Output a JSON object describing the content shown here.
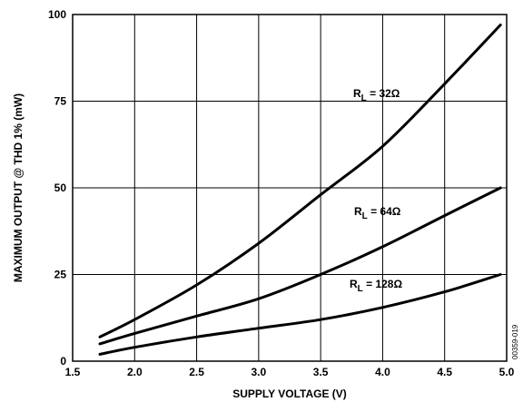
{
  "chart_data": {
    "type": "line",
    "title": "",
    "xlabel": "SUPPLY VOLTAGE (V)",
    "ylabel": "MAXIMUM OUTPUT @ THD 1% (mW)",
    "xlim": [
      1.5,
      5.0
    ],
    "ylim": [
      0,
      100
    ],
    "xticks": [
      "1.5",
      "2.0",
      "2.5",
      "3.0",
      "3.5",
      "4.0",
      "4.5",
      "5.0"
    ],
    "yticks": [
      "0",
      "25",
      "50",
      "75",
      "100"
    ],
    "grid": true,
    "series": [
      {
        "name": "R_L = 32Ω",
        "label_main": "R",
        "label_sub": "L",
        "label_rest": " = 32Ω",
        "x": [
          1.72,
          2.0,
          2.5,
          3.0,
          3.5,
          4.0,
          4.5,
          4.95
        ],
        "values": [
          7,
          12,
          22,
          34,
          48,
          62,
          80,
          97
        ]
      },
      {
        "name": "R_L = 64Ω",
        "label_main": "R",
        "label_sub": "L",
        "label_rest": " = 64Ω",
        "x": [
          1.72,
          2.0,
          2.5,
          3.0,
          3.5,
          4.0,
          4.5,
          4.95
        ],
        "values": [
          5,
          8,
          13,
          18,
          25,
          33,
          42,
          50
        ]
      },
      {
        "name": "R_L = 128Ω",
        "label_main": "R",
        "label_sub": "L",
        "label_rest": " = 128Ω",
        "x": [
          1.72,
          2.0,
          2.5,
          3.0,
          3.5,
          4.0,
          4.5,
          4.95
        ],
        "values": [
          2,
          4,
          7,
          9.5,
          12,
          15.5,
          20,
          25
        ]
      }
    ],
    "figure_code": "00359-019"
  }
}
